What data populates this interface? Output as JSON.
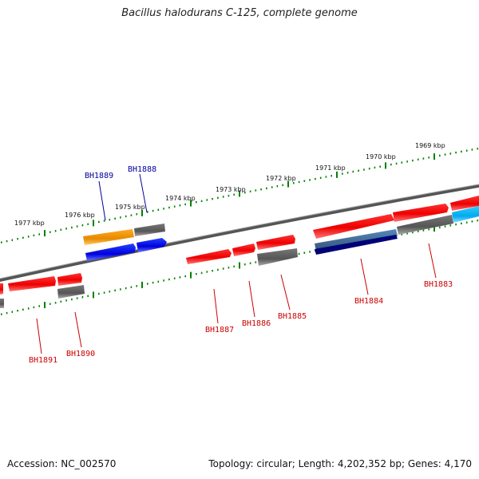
{
  "title": "Bacillus halodurans C-125, complete genome",
  "footer": {
    "accession": "Accession: NC_002570",
    "summary": "Topology: circular; Length: 4,202,352 bp; Genes: 4,170"
  },
  "ruler_labels": [
    "1977 kbp",
    "1976 kbp",
    "1975 kbp",
    "1974 kbp",
    "1973 kbp",
    "1972 kbp",
    "1971 kbp",
    "1970 kbp",
    "1969 kbp"
  ],
  "gene_labels_blue": [
    "BH1889",
    "BH1888"
  ],
  "gene_labels_red": [
    "BH1891",
    "BH1890",
    "BH1887",
    "BH1886",
    "BH1885",
    "BH1884",
    "BH1883"
  ],
  "colors": {
    "forward_gene": "#ff0000",
    "reverse_gene": "#ff0000",
    "pseudo": "#666666",
    "orange": "#ff9900",
    "blue": "#0000ff",
    "cyan": "#00bfff",
    "ruler": "#008000",
    "label_red": "#cc0000",
    "label_blue": "#000099"
  }
}
